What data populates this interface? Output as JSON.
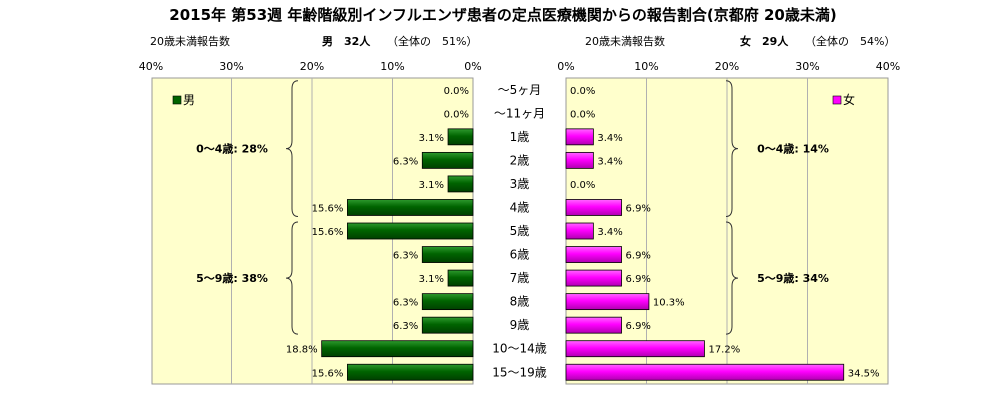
{
  "chart_data": {
    "type": "bar",
    "title": "2015年 第53週 年齢階級別インフルエンザ患者の定点医療機関からの報告割合(京都府 20歳未満)",
    "categories": [
      "～5ヶ月",
      "～11ヶ月",
      "1歳",
      "2歳",
      "3歳",
      "4歳",
      "5歳",
      "6歳",
      "7歳",
      "8歳",
      "9歳",
      "10～14歳",
      "15～19歳"
    ],
    "male": {
      "header_left": "20歳未満報告数",
      "header_count": "男　32人",
      "header_share": "（全体の　51%）",
      "legend": "男",
      "color": "#006400",
      "values": [
        0.0,
        0.0,
        3.1,
        6.3,
        3.1,
        15.6,
        15.6,
        6.3,
        3.1,
        6.3,
        6.3,
        18.8,
        15.6
      ],
      "value_labels": [
        "0.0%",
        "0.0%",
        "3.1%",
        "6.3%",
        "3.1%",
        "15.6%",
        "15.6%",
        "6.3%",
        "3.1%",
        "6.3%",
        "6.3%",
        "18.8%",
        "15.6%"
      ],
      "ticks": [
        "40%",
        "30%",
        "20%",
        "10%",
        "0%"
      ],
      "xlim": [
        0,
        40
      ],
      "groups": [
        {
          "label": "0～4歳: 28%",
          "from": 0,
          "to": 5
        },
        {
          "label": "5～9歳: 38%",
          "from": 6,
          "to": 10
        }
      ]
    },
    "female": {
      "header_left": "20歳未満報告数",
      "header_count": "女　29人",
      "header_share": "（全体の　54%）",
      "legend": "女",
      "color": "#ff00ff",
      "values": [
        0.0,
        0.0,
        3.4,
        3.4,
        0.0,
        6.9,
        3.4,
        6.9,
        6.9,
        10.3,
        6.9,
        17.2,
        34.5
      ],
      "value_labels": [
        "0.0%",
        "0.0%",
        "3.4%",
        "3.4%",
        "0.0%",
        "6.9%",
        "3.4%",
        "6.9%",
        "6.9%",
        "10.3%",
        "6.9%",
        "17.2%",
        "34.5%"
      ],
      "ticks": [
        "0%",
        "10%",
        "20%",
        "30%",
        "40%"
      ],
      "xlim": [
        0,
        40
      ],
      "groups": [
        {
          "label": "0～4歳: 14%",
          "from": 0,
          "to": 5
        },
        {
          "label": "5～9歳: 34%",
          "from": 6,
          "to": 10
        }
      ]
    },
    "plot_background": "#ffffcc",
    "grid": true
  }
}
